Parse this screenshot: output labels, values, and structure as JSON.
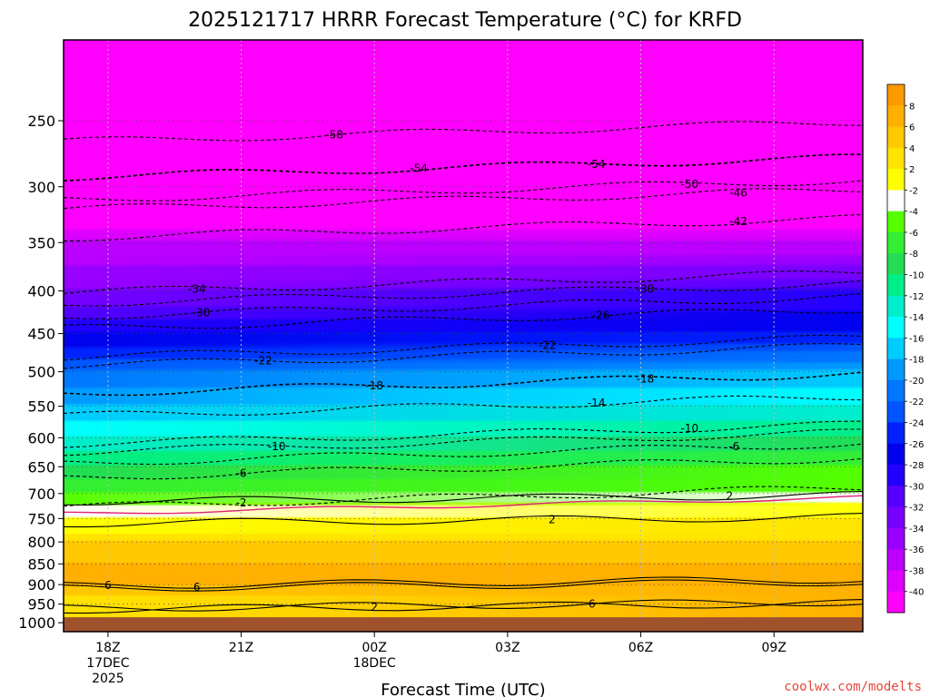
{
  "chart_data": {
    "type": "heatmap",
    "title": "2025121717 HRRR Forecast Temperature (°C) for KRFD",
    "xlabel": "Forecast Time (UTC)",
    "credit": "coolwx.com/modelts",
    "x_ticks": [
      {
        "hour": 0,
        "lines": [
          "18Z",
          "17DEC",
          "2025"
        ]
      },
      {
        "hour": 3,
        "lines": [
          "21Z"
        ]
      },
      {
        "hour": 6,
        "lines": [
          "00Z",
          "18DEC"
        ]
      },
      {
        "hour": 9,
        "lines": [
          "03Z"
        ]
      },
      {
        "hour": 12,
        "lines": [
          "06Z"
        ]
      },
      {
        "hour": 15,
        "lines": [
          "09Z"
        ]
      }
    ],
    "xlim": [
      -1,
      17
    ],
    "pressure_ticks": [
      250,
      300,
      350,
      400,
      450,
      500,
      550,
      600,
      650,
      700,
      750,
      800,
      850,
      900,
      950,
      1000
    ],
    "pressure_range_hpa": [
      200,
      1025
    ],
    "surface_pressure_hpa": 985,
    "colorbar": {
      "labels": [
        "8",
        "6",
        "4",
        "2",
        "-2",
        "-4",
        "-6",
        "-8",
        "-10",
        "-12",
        "-14",
        "-16",
        "-18",
        "-20",
        "-22",
        "-24",
        "-26",
        "-28",
        "-30",
        "-32",
        "-34",
        "-36",
        "-38",
        "-40"
      ],
      "colors": [
        "#FF9900",
        "#FFB000",
        "#FFC800",
        "#FFE400",
        "#FFFF00",
        "#FFFFFF",
        "#55FF00",
        "#33EE33",
        "#22DD55",
        "#00EE88",
        "#00EECC",
        "#00FFFF",
        "#00CCFF",
        "#0099FF",
        "#0077FF",
        "#0055FF",
        "#0022FF",
        "#0000EE",
        "#2200FF",
        "#5500FF",
        "#7700FF",
        "#9900FF",
        "#BB00FF",
        "#DD00FF",
        "#FF00FF"
      ]
    },
    "temperature_profile": {
      "hours": [
        -1,
        17
      ],
      "columns": [
        {
          "hour": -1,
          "levels_hpa": [
            200,
            300,
            350,
            400,
            450,
            500,
            550,
            600,
            650,
            700,
            750,
            800,
            850,
            900,
            950,
            985
          ],
          "temp_c": [
            -58,
            -46,
            -38,
            -34,
            -28,
            -22,
            -18,
            -14,
            -10,
            -6,
            -2,
            4,
            6,
            6,
            2,
            2
          ]
        },
        {
          "hour": 17,
          "levels_hpa": [
            200,
            300,
            350,
            400,
            450,
            500,
            550,
            600,
            650,
            700,
            750,
            800,
            850,
            900,
            950,
            985
          ],
          "temp_c": [
            -58,
            -46,
            -38,
            -30,
            -26,
            -18,
            -14,
            -10,
            -6,
            -4,
            2,
            4,
            6,
            6,
            6,
            6
          ]
        }
      ]
    },
    "contour_labels": [
      {
        "value": -58,
        "text": "-58",
        "hour": 5.1,
        "p": 260
      },
      {
        "value": -54,
        "text": "-54",
        "hour": 7.0,
        "p": 285
      },
      {
        "value": -54,
        "text": "-54",
        "hour": 11.0,
        "p": 282
      },
      {
        "value": -50,
        "text": "-50",
        "hour": 13.1,
        "p": 298
      },
      {
        "value": -46,
        "text": "-46",
        "hour": 14.2,
        "p": 305
      },
      {
        "value": -42,
        "text": "-42",
        "hour": 14.2,
        "p": 330
      },
      {
        "value": -34,
        "text": "-34",
        "hour": 2.0,
        "p": 398
      },
      {
        "value": -30,
        "text": "-30",
        "hour": 2.1,
        "p": 425
      },
      {
        "value": -30,
        "text": "-30",
        "hour": 12.1,
        "p": 398
      },
      {
        "value": -26,
        "text": "-26",
        "hour": 11.1,
        "p": 428
      },
      {
        "value": -22,
        "text": "-22",
        "hour": 3.5,
        "p": 485
      },
      {
        "value": -22,
        "text": "-22",
        "hour": 9.9,
        "p": 465
      },
      {
        "value": -18,
        "text": "-18",
        "hour": 6.0,
        "p": 520
      },
      {
        "value": -18,
        "text": "-18",
        "hour": 12.1,
        "p": 510
      },
      {
        "value": -14,
        "text": "-14",
        "hour": 11.0,
        "p": 545
      },
      {
        "value": -10,
        "text": "-10",
        "hour": 3.8,
        "p": 615
      },
      {
        "value": -10,
        "text": "-10",
        "hour": 13.1,
        "p": 585
      },
      {
        "value": -6,
        "text": "-6",
        "hour": 3.0,
        "p": 662
      },
      {
        "value": -6,
        "text": "-6",
        "hour": 14.1,
        "p": 615
      },
      {
        "value": -2,
        "text": "-2",
        "hour": 3.0,
        "p": 718
      },
      {
        "value": 2,
        "text": "2",
        "hour": 10.0,
        "p": 752
      },
      {
        "value": 2,
        "text": "2",
        "hour": 14.0,
        "p": 705
      },
      {
        "value": 6,
        "text": "6",
        "hour": 0.0,
        "p": 902
      },
      {
        "value": 6,
        "text": "6",
        "hour": 2.0,
        "p": 907
      },
      {
        "value": 6,
        "text": "6",
        "hour": 10.9,
        "p": 950
      },
      {
        "value": 2,
        "text": "2",
        "hour": 6.0,
        "p": 958
      }
    ]
  }
}
